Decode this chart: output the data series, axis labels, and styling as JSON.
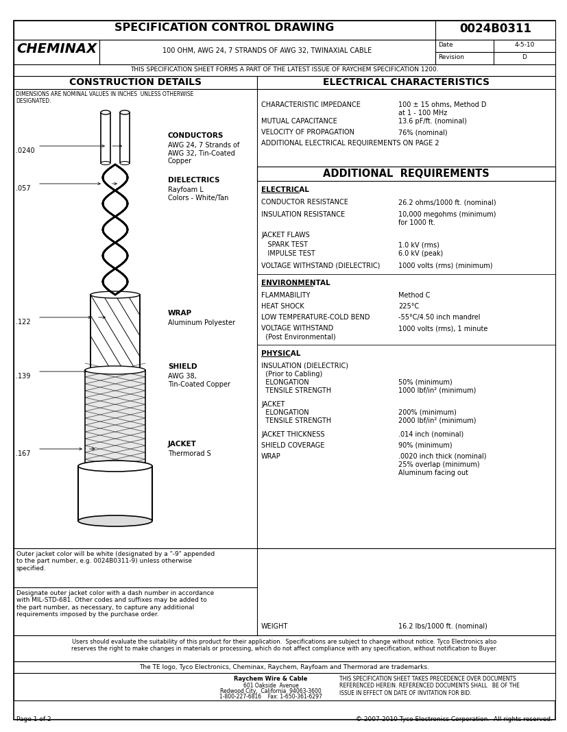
{
  "page_bg": "#ffffff",
  "title_row": "SPECIFICATION CONTROL DRAWING",
  "part_number": "0024B0311",
  "company": "CHEMINAX",
  "description": "100 OHM, AWG 24, 7 STRANDS OF AWG 32, TWINAXIAL CABLE",
  "date_label": "Date",
  "date_value": "4-5-10",
  "revision_label": "Revision",
  "revision_value": "D",
  "spec_note": "THIS SPECIFICATION SHEET FORMS A PART OF THE LATEST ISSUE OF RAYCHEM SPECIFICATION 1200.",
  "left_header": "CONSTRUCTION DETAILS",
  "right_header": "ELECTRICAL CHARACTERISTICS",
  "dim_note": "DIMENSIONS ARE NOMINAL VALUES IN INCHES  UNLESS OTHERWISE\nDESIGNATED.",
  "conductors_label": "CONDUCTORS",
  "conductors_text": "AWG 24, 7 Strands of\nAWG 32, Tin-Coated\nCopper",
  "dim1": ".0240",
  "dielectrics_label": "DIELECTRICS",
  "dielectrics_text": "Rayfoam L\nColors - White/Tan",
  "dim2": ".057",
  "wrap_label": "WRAP",
  "wrap_text": "Aluminum Polyester",
  "dim3": ".122",
  "shield_label": "SHIELD",
  "shield_text": "AWG 38,\nTin-Coated Copper",
  "dim4": ".139",
  "jacket_label": "JACKET",
  "jacket_text": "Thermorad S",
  "dim5": ".167",
  "char_imp_label": "CHARACTERISTIC IMPEDANCE",
  "char_imp_val": "100 ± 15 ohms, Method D\nat 1 - 100 MHz",
  "mut_cap_label": "MUTUAL CAPACITANCE",
  "mut_cap_val": "13.6 pF/ft. (nominal)",
  "vel_prop_label": "VELOCITY OF PROPAGATION",
  "vel_prop_val": "76% (nominal)",
  "add_elec": "ADDITIONAL ELECTRICAL REQUIREMENTS ON PAGE 2",
  "add_req_header": "ADDITIONAL  REQUIREMENTS",
  "elec_section": "ELECTRICAL",
  "cond_res_label": "CONDUCTOR RESISTANCE",
  "cond_res_val": "26.2 ohms/1000 ft. (nominal)",
  "ins_res_label": "INSULATION RESISTANCE",
  "ins_res_val": "10,000 megohms (minimum)\nfor 1000 ft.",
  "jacket_flaws_label": "JACKET FLAWS",
  "spark_test_label": "   SPARK TEST",
  "spark_test_val": "1.0 kV (rms)",
  "impulse_test_label": "   IMPULSE TEST",
  "impulse_test_val": "6.0 kV (peak)",
  "volt_with_label": "VOLTAGE WITHSTAND (DIELECTRIC)",
  "volt_with_val": "1000 volts (rms) (minimum)",
  "env_section": "ENVIRONMENTAL",
  "flamm_label": "FLAMMABILITY",
  "flamm_val": "Method C",
  "heat_shock_label": "HEAT SHOCK",
  "heat_shock_val": "225°C",
  "low_temp_label": "LOW TEMPERATURE-COLD BEND",
  "low_temp_val": "-55°C/4.50 inch mandrel",
  "volt_with2_label": "VOLTAGE WITHSTAND",
  "volt_with2_sub": "  (Post Environmental)",
  "volt_with2_val": "1000 volts (rms), 1 minute",
  "phys_section": "PHYSICAL",
  "jacket_thick_label": "JACKET THICKNESS",
  "jacket_thick_val": ".014 inch (nominal)",
  "shield_cov_label": "SHIELD COVERAGE",
  "shield_cov_val": "90% (minimum)",
  "weight_label": "WEIGHT",
  "weight_val": "16.2 lbs/1000 ft. (nominal)",
  "note1": "Outer jacket color will be white (designated by a \"-9\" appended\nto the part number, e.g. 0024B0311-9) unless otherwise\nspecified.",
  "note2": "Designate outer jacket color with a dash number in accordance\nwith MIL-STD-681. Other codes and suffixes may be added to\nthe part number, as necessary, to capture any additional\nrequirements imposed by the purchase order.",
  "footer1": "Users should evaluate the suitability of this product for their application.  Specifications are subject to change without notice. Tyco Electronics also\nreserves the right to make changes in materials or processing, which do not affect compliance with any specification, without notification to Buyer.",
  "footer2": "The TE logo, Tyco Electronics, Cheminax, Raychem, Rayfoam and Thermorad are trademarks.",
  "page_label": "Page 1 of 2",
  "copyright": "© 2007-2010 Tyco Electronics Corporation.  All rights reserved."
}
